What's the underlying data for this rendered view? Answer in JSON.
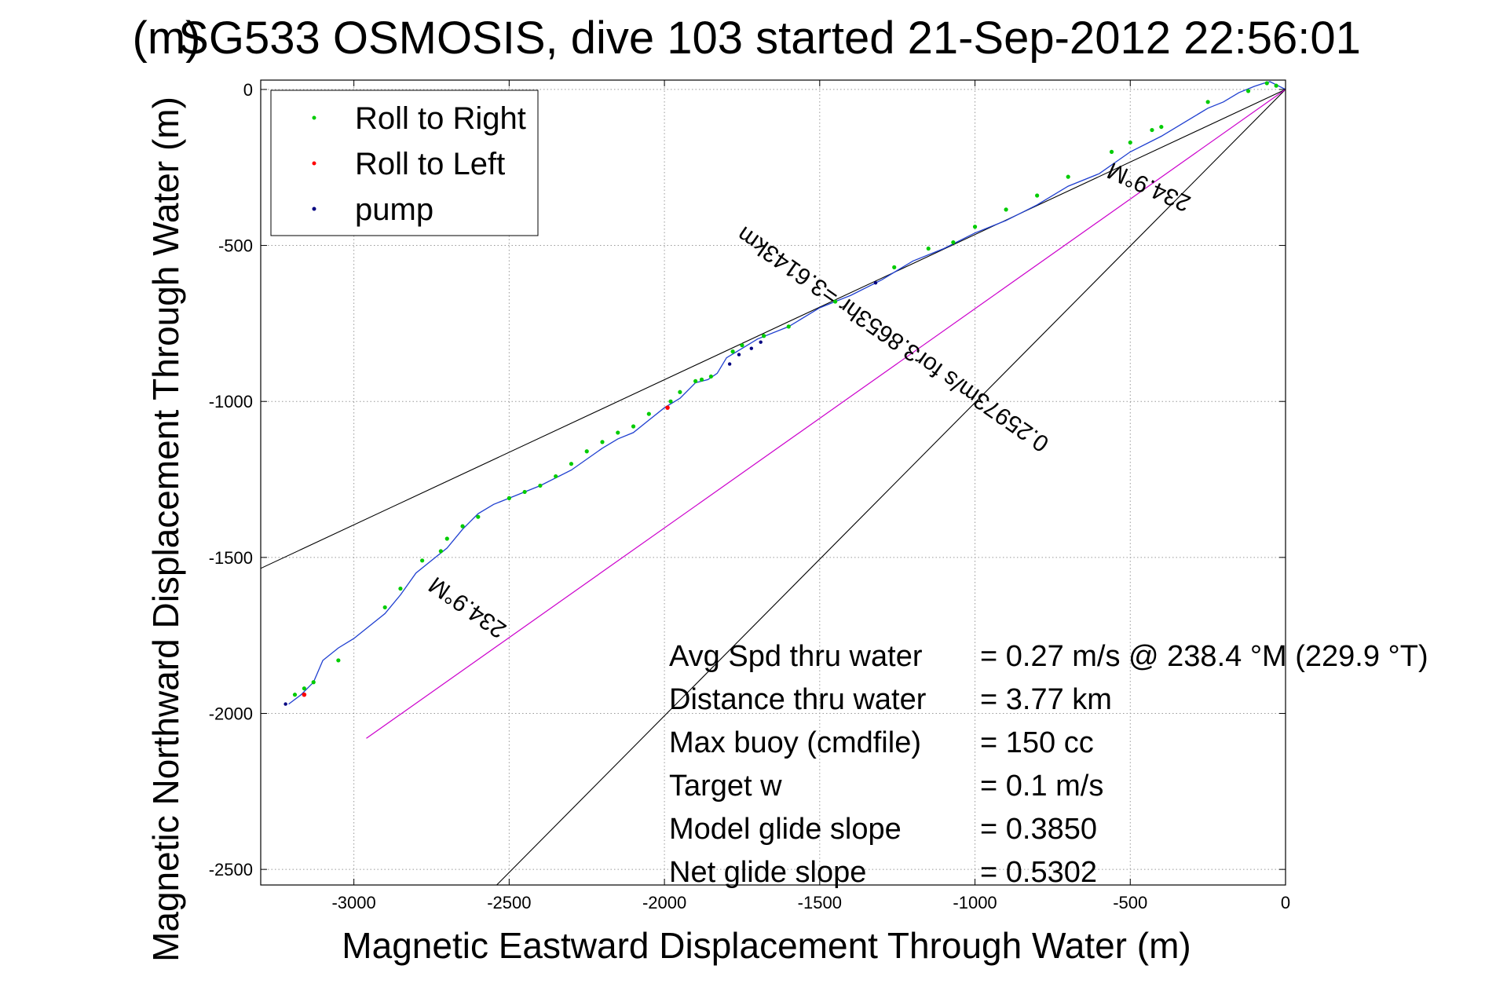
{
  "chart_data": {
    "type": "scatter",
    "title": "SG533 OSMOSIS, dive 103 started 21-Sep-2012 22:56:01",
    "title_overlap": "(m)",
    "xlabel": "Magnetic Eastward Displacement Through Water (m)",
    "ylabel": "Magnetic Northward Displacement Through Water (m)",
    "xlim": [
      -3300,
      0
    ],
    "ylim": [
      -2550,
      30
    ],
    "grid": true,
    "legend_position": "top-left",
    "xticks": [
      -3000,
      -2500,
      -2000,
      -1500,
      -1000,
      -500,
      0
    ],
    "yticks": [
      0,
      -500,
      -1000,
      -1500,
      -2000,
      -2500
    ],
    "colors": {
      "track": "#1f3fd0",
      "roll_right": "#00cc00",
      "roll_left": "#ff0000",
      "pump": "#000080",
      "current_line": "#cc00cc",
      "reference_lines": "#000000",
      "grid": "#999999"
    },
    "legend": [
      {
        "label": "Roll to Right",
        "color": "#00cc00"
      },
      {
        "label": "Roll to Left",
        "color": "#ff0000"
      },
      {
        "label": "pump",
        "color": "#000080"
      }
    ],
    "track": {
      "x": [
        0,
        -20,
        -50,
        -70,
        -100,
        -150,
        -200,
        -250,
        -300,
        -400,
        -500,
        -600,
        -700,
        -800,
        -900,
        -1000,
        -1100,
        -1200,
        -1300,
        -1400,
        -1500,
        -1600,
        -1700,
        -1750,
        -1800,
        -1830,
        -1860,
        -1900,
        -1950,
        -2000,
        -2050,
        -2100,
        -2150,
        -2200,
        -2300,
        -2400,
        -2500,
        -2550,
        -2600,
        -2650,
        -2700,
        -2750,
        -2800,
        -2850,
        -2900,
        -2950,
        -3000,
        -3050,
        -3100,
        -3130,
        -3150,
        -3170,
        -3210
      ],
      "y": [
        0,
        10,
        25,
        20,
        10,
        -10,
        -40,
        -60,
        -90,
        -150,
        -200,
        -270,
        -310,
        -370,
        -420,
        -460,
        -510,
        -550,
        -610,
        -660,
        -700,
        -760,
        -800,
        -830,
        -860,
        -910,
        -930,
        -940,
        -990,
        -1020,
        -1060,
        -1100,
        -1120,
        -1150,
        -1220,
        -1270,
        -1310,
        -1330,
        -1360,
        -1410,
        -1470,
        -1510,
        -1550,
        -1620,
        -1680,
        -1720,
        -1760,
        -1790,
        -1830,
        -1900,
        -1920,
        -1940,
        -1970
      ]
    },
    "roll_right": {
      "x": [
        -30,
        -60,
        -120,
        -250,
        -400,
        -430,
        -500,
        -560,
        -700,
        -800,
        -900,
        -1000,
        -1070,
        -1150,
        -1260,
        -1450,
        -1600,
        -1680,
        -1750,
        -1780,
        -1850,
        -1880,
        -1900,
        -1950,
        -1980,
        -2050,
        -2100,
        -2150,
        -2200,
        -2250,
        -2300,
        -2350,
        -2400,
        -2450,
        -2500,
        -2600,
        -2650,
        -2700,
        -2720,
        -2780,
        -2850,
        -2900,
        -3050,
        -3130,
        -3160,
        -3190
      ],
      "y": [
        12,
        20,
        -5,
        -40,
        -120,
        -130,
        -170,
        -200,
        -280,
        -340,
        -385,
        -440,
        -490,
        -510,
        -570,
        -680,
        -760,
        -790,
        -820,
        -840,
        -920,
        -930,
        -935,
        -970,
        -1000,
        -1040,
        -1080,
        -1100,
        -1130,
        -1160,
        -1200,
        -1240,
        -1270,
        -1290,
        -1310,
        -1370,
        -1400,
        -1440,
        -1480,
        -1510,
        -1600,
        -1660,
        -1830,
        -1900,
        -1920,
        -1940
      ]
    },
    "roll_left": {
      "x": [
        -1990,
        -3160
      ],
      "y": [
        -1020,
        -1940
      ]
    },
    "pump": {
      "x": [
        -1320,
        -1690,
        -1720,
        -1760,
        -1790,
        -3220
      ],
      "y": [
        -620,
        -810,
        -830,
        -850,
        -880,
        -1970
      ]
    },
    "current_line": {
      "x": [
        0,
        -2960
      ],
      "y": [
        0,
        -2080
      ]
    },
    "reference_lines": [
      {
        "x": [
          0,
          -3300
        ],
        "y": [
          0,
          -1535
        ]
      },
      {
        "x": [
          0,
          -2540
        ],
        "y": [
          0,
          -2550
        ]
      }
    ],
    "annotations": [
      {
        "text": "234.9°M",
        "x": -430,
        "y": -290,
        "angle": 204
      },
      {
        "text": "0.25973m/s for3.8653hr =3.6143km",
        "x": -1250,
        "y": -780,
        "angle": 215
      },
      {
        "text": "234.9°M",
        "x": -2620,
        "y": -1640,
        "angle": 215
      }
    ],
    "stats": [
      {
        "label": "Avg Spd thru water",
        "value": "=  0.27 m/s @ 238.4  °M (229.9 °T)"
      },
      {
        "label": "Distance thru water",
        "value": "=  3.77 km"
      },
      {
        "label": "Max buoy (cmdfile)",
        "value": "= 150 cc"
      },
      {
        "label": "Target w",
        "value": "= 0.1 m/s"
      },
      {
        "label": "Model glide slope",
        "value": "= 0.3850"
      },
      {
        "label": "Net glide slope",
        "value": "= 0.5302"
      }
    ]
  }
}
